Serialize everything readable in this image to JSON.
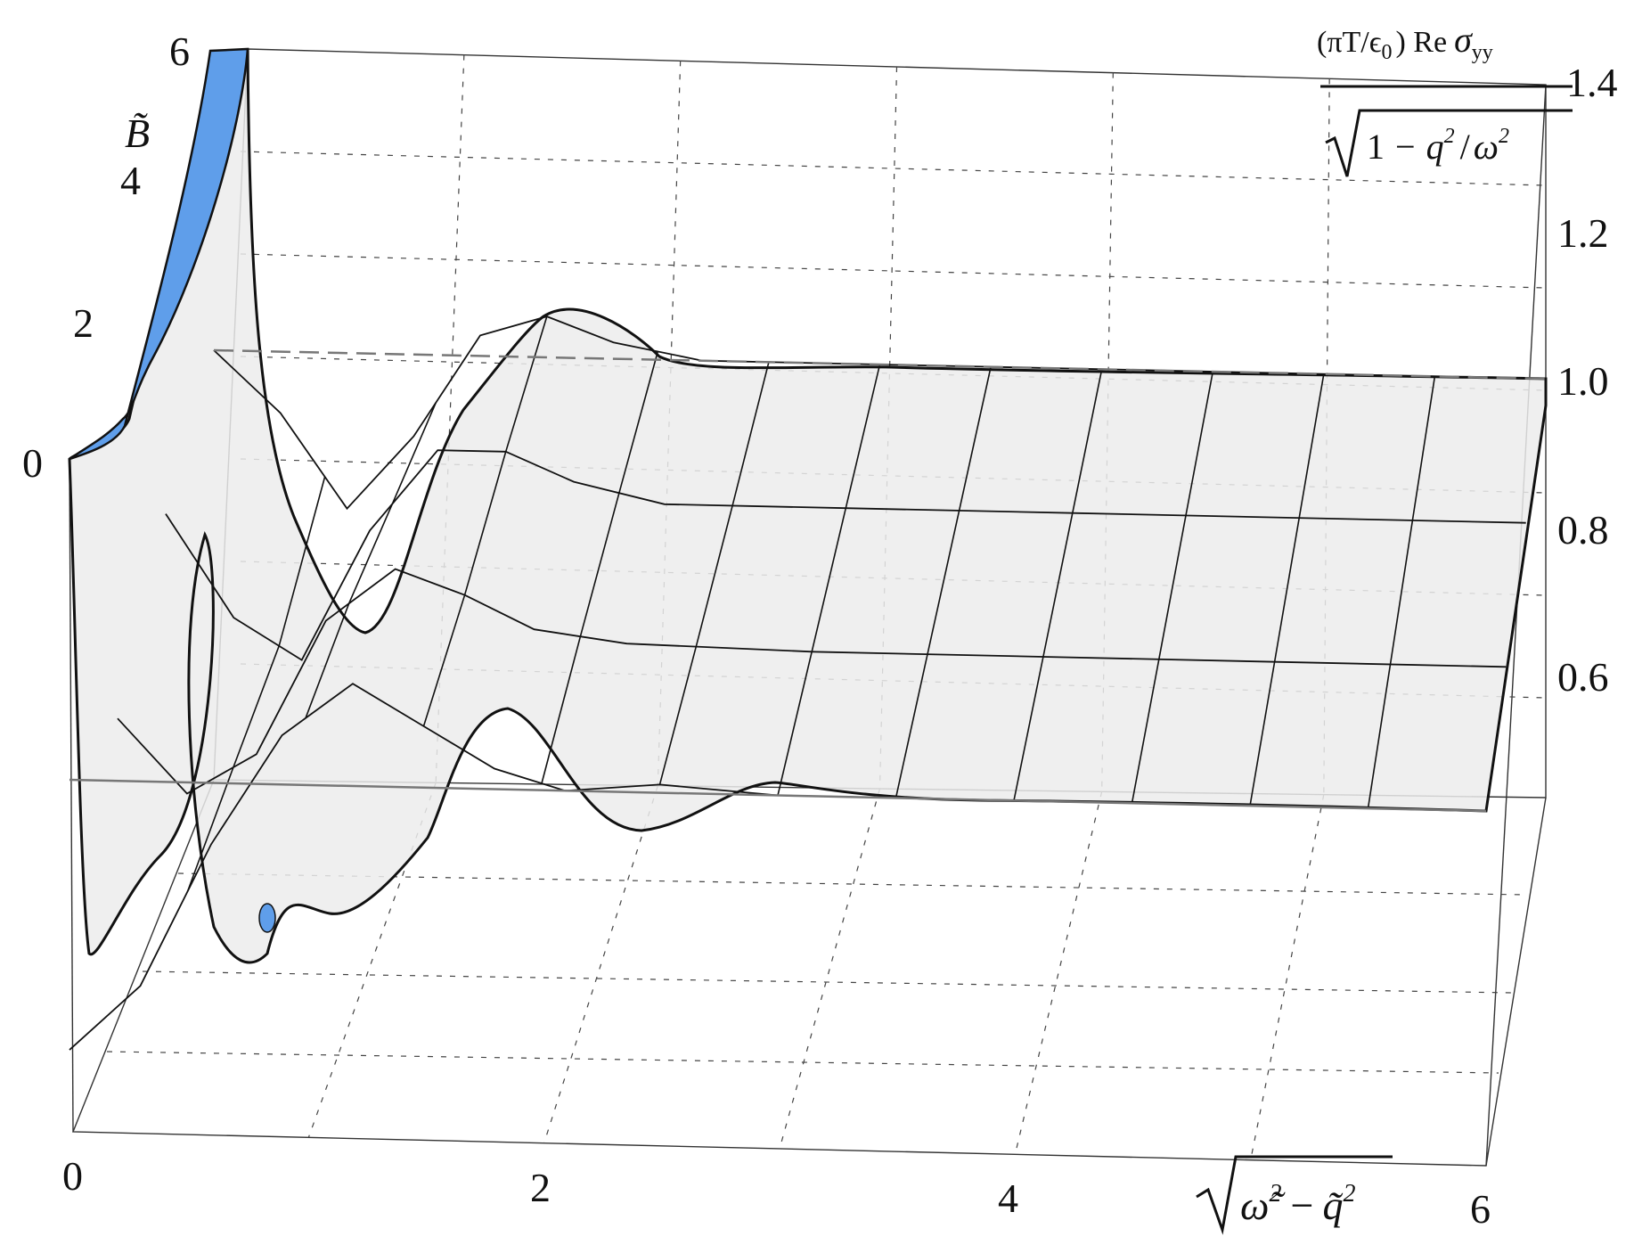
{
  "chart_data": {
    "type": "surface3d",
    "x_axis": {
      "label": "√(ω̃² − q̃²)",
      "label_parts": {
        "omega": "ω̃",
        "minus": "−",
        "q": "q̃",
        "sup": "2"
      },
      "ticks": [
        "0",
        "2",
        "4",
        "6"
      ],
      "range": [
        0,
        6
      ]
    },
    "y_axis": {
      "label": "B̃",
      "ticks": [
        "0",
        "2",
        "4",
        "6"
      ],
      "range": [
        0,
        6
      ]
    },
    "z_axis": {
      "label_numerator": "(πT/ϵ0) Re σyy",
      "label_parts": {
        "prefix": "(πT/ϵ",
        "sub0": "0",
        "suffix": ") Re",
        "sigma": "σ",
        "sub_yy": "yy"
      },
      "label_denominator": "√(1 − q²/ω²)",
      "denominator_parts": {
        "one": "1",
        "minus": "−",
        "q": "q",
        "slash": "/",
        "omega": "ω",
        "sup": "2"
      },
      "ticks": [
        "0.6",
        "0.8",
        "1.0",
        "1.2",
        "1.4"
      ],
      "range": [
        0.45,
        1.4
      ]
    },
    "asymptote": 1.0,
    "grid": true,
    "surface_color": "#e8e8e8",
    "highlight_color": "#5f9eea",
    "sample_curves": [
      {
        "B": 0,
        "points": [
          [
            0,
            0.34
          ],
          [
            0.3,
            0.5
          ],
          [
            0.6,
            0.85
          ],
          [
            0.9,
            1.12
          ],
          [
            1.2,
            1.25
          ],
          [
            1.5,
            1.15
          ],
          [
            1.8,
            1.05
          ],
          [
            2.1,
            1.0
          ],
          [
            2.5,
            1.02
          ],
          [
            3,
            1.0
          ],
          [
            4,
            1.0
          ],
          [
            6,
            1.0
          ]
        ]
      },
      {
        "B": 2,
        "points": [
          [
            0,
            0.8
          ],
          [
            0.3,
            0.62
          ],
          [
            0.6,
            0.72
          ],
          [
            0.9,
            1.05
          ],
          [
            1.2,
            1.18
          ],
          [
            1.5,
            1.12
          ],
          [
            1.8,
            1.04
          ],
          [
            2.2,
            1.01
          ],
          [
            3,
            1.0
          ],
          [
            4,
            1.0
          ],
          [
            6,
            1.0
          ]
        ]
      },
      {
        "B": 4,
        "points": [
          [
            0,
            0.95
          ],
          [
            0.3,
            0.7
          ],
          [
            0.6,
            0.6
          ],
          [
            0.9,
            0.92
          ],
          [
            1.2,
            1.12
          ],
          [
            1.5,
            1.12
          ],
          [
            1.8,
            1.05
          ],
          [
            2.2,
            1.0
          ],
          [
            3,
            1.0
          ],
          [
            4,
            1.0
          ],
          [
            6,
            1.0
          ]
        ]
      },
      {
        "B": 6,
        "points": [
          [
            0,
            1.0
          ],
          [
            0.3,
            0.85
          ],
          [
            0.6,
            0.62
          ],
          [
            0.9,
            0.8
          ],
          [
            1.2,
            1.05
          ],
          [
            1.5,
            1.1
          ],
          [
            1.8,
            1.04
          ],
          [
            2.2,
            1.0
          ],
          [
            3,
            1.0
          ],
          [
            4,
            1.0
          ],
          [
            6,
            1.0
          ]
        ]
      }
    ]
  }
}
